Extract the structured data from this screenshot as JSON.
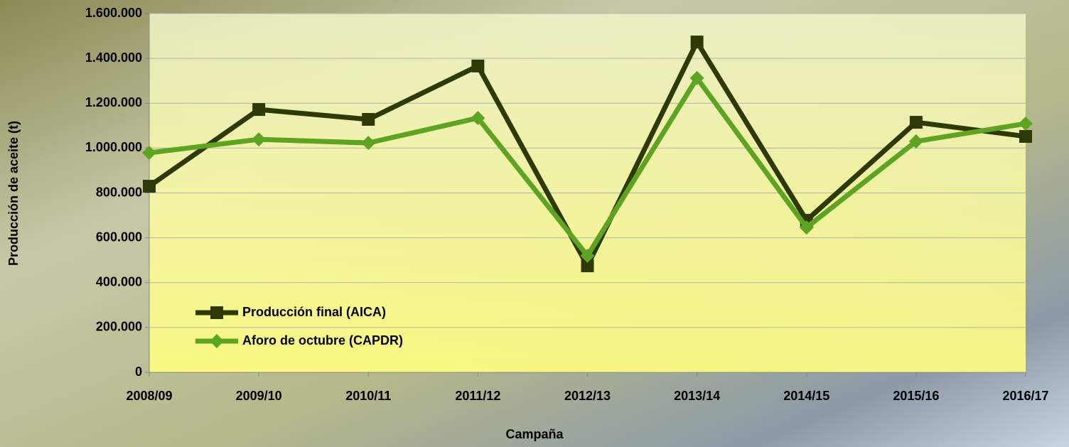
{
  "chart_data": {
    "type": "line",
    "x_label": "Campaña",
    "y_label": "Producción de aceite (t)",
    "categories": [
      "2008/09",
      "2009/10",
      "2010/11",
      "2011/12",
      "2012/13",
      "2013/14",
      "2014/15",
      "2015/16",
      "2016/17"
    ],
    "series": [
      {
        "name": "Producción final (AICA)",
        "color": "#2e3a06",
        "marker": "square",
        "values": [
          830000,
          1172000,
          1128000,
          1366000,
          475000,
          1473000,
          678000,
          1115000,
          1052000
        ]
      },
      {
        "name": "Aforo de octubre (CAPDR)",
        "color": "#5ea322",
        "marker": "diamond",
        "values": [
          979000,
          1039000,
          1023000,
          1134000,
          520000,
          1312000,
          646000,
          1030000,
          1109000
        ]
      }
    ],
    "ylim": [
      0,
      1600000
    ],
    "yticks": [
      0,
      {
        "value": 200000,
        "label": "200.000"
      },
      {
        "value": 400000,
        "label": "400.000"
      },
      {
        "value": 600000,
        "label": "600.000"
      },
      {
        "value": 800000,
        "label": "800.000"
      },
      {
        "value": 1000000,
        "label": "1.000.000"
      },
      {
        "value": 1200000,
        "label": "1.200.000"
      },
      {
        "value": 1400000,
        "label": "1.400.000"
      },
      {
        "value": 1600000,
        "label": "1.600.000"
      }
    ],
    "grid": true,
    "legend": "lower-left"
  }
}
